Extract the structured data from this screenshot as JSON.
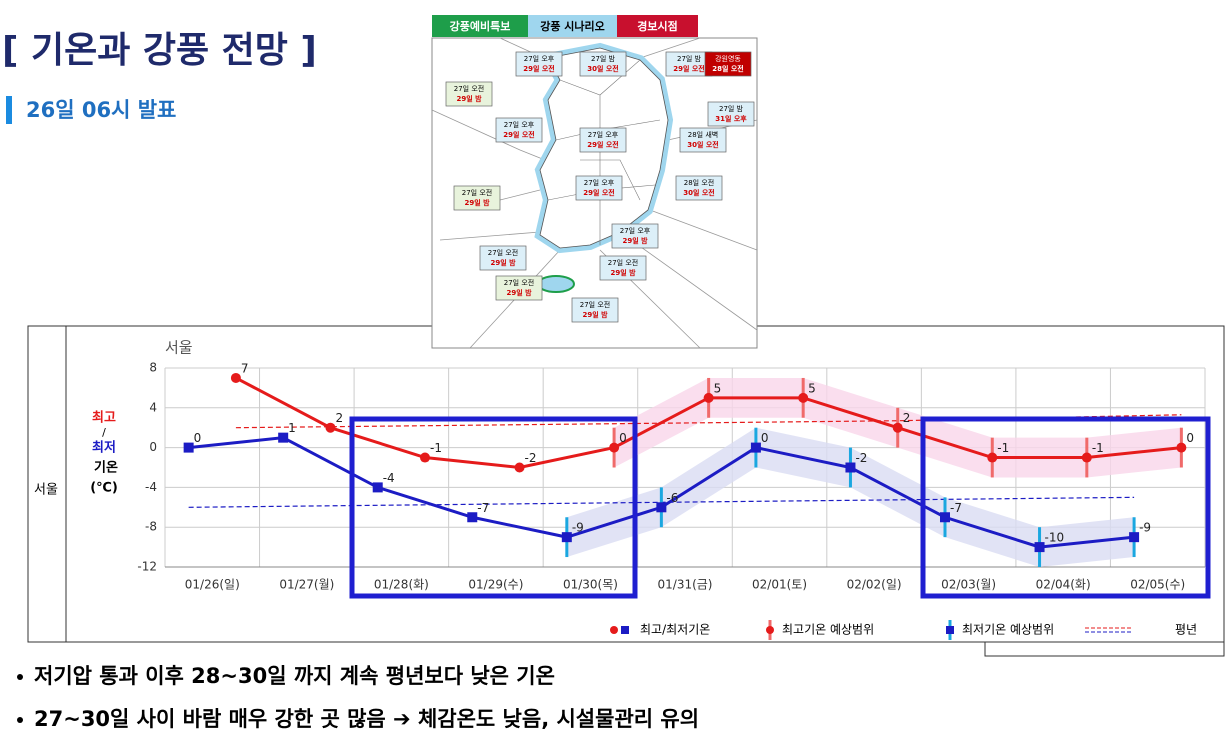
{
  "title": "[ 기온과 강풍 전망 ]",
  "subtitle": "26일 06시 발표",
  "map": {
    "tabs": [
      {
        "label": "강풍예비특보",
        "color": "#1e9e4a"
      },
      {
        "label": "강풍 시나리오",
        "color": "#9fd6ee"
      },
      {
        "label": "경보시점",
        "color": "#c8102e"
      }
    ],
    "boxes": [
      {
        "line1": "27일 오후",
        "line2": "29일 오전",
        "color": "#dcefF8"
      },
      {
        "line1": "27일 밤",
        "line2": "30일 오전",
        "color": "#dcefF8"
      },
      {
        "line1": "27일 밤",
        "line2": "29일 오전",
        "color": "#dcefF8"
      },
      {
        "line1": "강원영동",
        "line2": "28일 오전",
        "color": "#c00000"
      },
      {
        "line1": "27일 오전",
        "line2": "29일 밤",
        "color": "#e8f3dc"
      },
      {
        "line1": "27일 밤",
        "line2": "31일 오후",
        "color": "#dcefF8"
      },
      {
        "line1": "27일 오후",
        "line2": "29일 오전",
        "color": "#dcefF8"
      },
      {
        "line1": "27일 오후",
        "line2": "29일 오전",
        "color": "#dcefF8"
      },
      {
        "line1": "28일 새벽",
        "line2": "30일 오전",
        "color": "#dcefF8"
      },
      {
        "line1": "27일 오후",
        "line2": "29일 오전",
        "color": "#dcefF8"
      },
      {
        "line1": "28일 오전",
        "line2": "30일 오전",
        "color": "#dcefF8"
      },
      {
        "line1": "27일 오전",
        "line2": "29일 밤",
        "color": "#e8f3dc"
      },
      {
        "line1": "27일 오후",
        "line2": "29일 밤",
        "color": "#dcefF8"
      },
      {
        "line1": "27일 오전",
        "line2": "29일 밤",
        "color": "#dcefF8"
      },
      {
        "line1": "27일 오전",
        "line2": "29일 밤",
        "color": "#dcefF8"
      },
      {
        "line1": "27일 오전",
        "line2": "29일 밤",
        "color": "#e8f3dc"
      },
      {
        "line1": "27일 오전",
        "line2": "29일 밤",
        "color": "#dcefF8"
      }
    ]
  },
  "chart_data": {
    "type": "line",
    "row_label": "서울",
    "title": "서울",
    "axis_label": {
      "sep": "/",
      "name": "기온",
      "unit": "(℃)"
    },
    "categories": [
      "01/26(일)",
      "01/27(월)",
      "01/28(화)",
      "01/29(수)",
      "01/30(목)",
      "01/31(금)",
      "02/01(토)",
      "02/02(일)",
      "02/03(월)",
      "02/04(화)",
      "02/05(수)"
    ],
    "series": [
      {
        "name": "최고",
        "color": "#e51b1b",
        "band_color": "#f9d6ea",
        "values": [
          7,
          2,
          -1,
          -2,
          0,
          5,
          5,
          2,
          -1,
          -1,
          0
        ],
        "errors": [
          null,
          null,
          null,
          null,
          2,
          2,
          2,
          2,
          2,
          2,
          2
        ]
      },
      {
        "name": "최저",
        "color": "#1c1cc4",
        "band_color": "#dadcf3",
        "values": [
          0,
          1,
          -4,
          -7,
          -9,
          -6,
          0,
          -2,
          -7,
          -10,
          -9
        ],
        "errors": [
          null,
          null,
          null,
          null,
          2,
          2,
          2,
          2,
          2,
          2,
          2
        ]
      }
    ],
    "normal": {
      "name": "평년",
      "max": [
        2,
        2.1,
        2.2,
        2.3,
        2.4,
        2.5,
        2.6,
        2.7,
        2.9,
        3.1,
        3.3
      ],
      "min": [
        -6,
        -5.9,
        -5.8,
        -5.7,
        -5.6,
        -5.5,
        -5.4,
        -5.3,
        -5.2,
        -5.1,
        -5
      ]
    },
    "legend": [
      "최고/최저기온",
      "최고기온 예상범위",
      "최저기온 예상범위"
    ],
    "ylim": [
      -12,
      8
    ],
    "yticks": [
      -12,
      -8,
      -4,
      0,
      4,
      8
    ],
    "grid": true
  },
  "bullets": [
    "저기압 통과 이후 28~30일 까지 계속 평년보다 낮은 기온",
    "27~30일 사이 바람 매우 강한 곳 많음 ➔ 체감온도 낮음, 시설물관리 유의"
  ]
}
